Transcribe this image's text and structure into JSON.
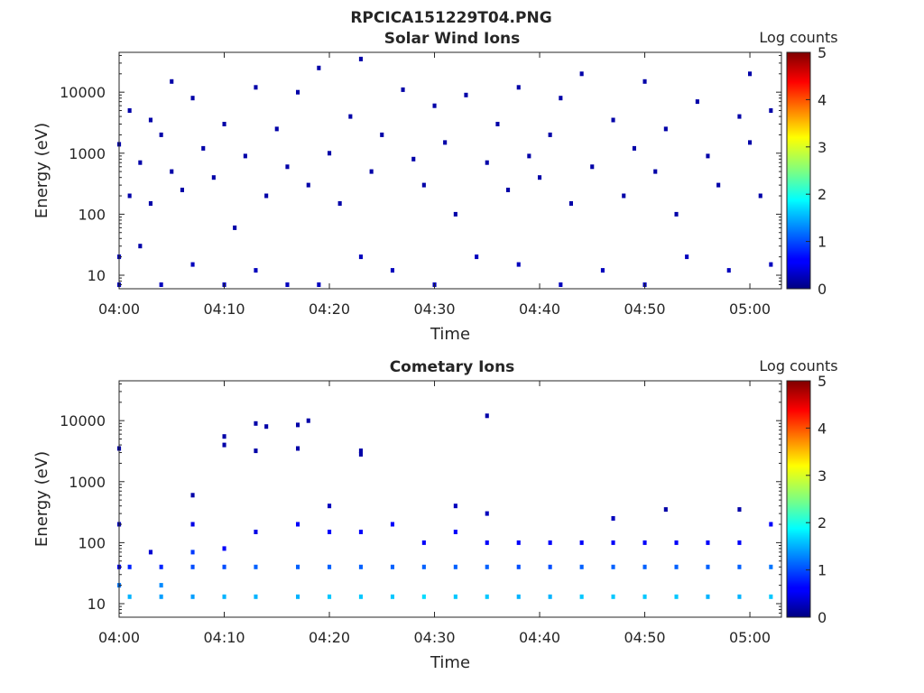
{
  "figure": {
    "title": "RPCICA151229T04.PNG"
  },
  "chart_data": [
    {
      "type": "heatmap",
      "title": "Solar Wind Ions",
      "xlabel": "Time",
      "ylabel": "Energy (eV)",
      "x_ticks": [
        "04:00",
        "04:10",
        "04:20",
        "04:30",
        "04:40",
        "04:50",
        "05:00"
      ],
      "y_ticks": [
        "10",
        "100",
        "1000",
        "10000"
      ],
      "xlim": [
        "04:00",
        "05:03"
      ],
      "ylim": [
        6,
        45000
      ],
      "y_scale": "log",
      "colorbar": {
        "label": "Log counts",
        "ticks": [
          "0",
          "1",
          "2",
          "3",
          "4",
          "5"
        ],
        "range": [
          0,
          5
        ],
        "colormap": "jet"
      },
      "data_summary": "Sparse scatter of ~1 count cells spread across the full 6 eV to 30 keV range for the whole hour; short vertical streaks below ~30 eV; almost all log counts are 0-0.5 (dark blue).",
      "cells": [
        [
          "04:00",
          20,
          0.3
        ],
        [
          "04:00",
          7,
          0.3
        ],
        [
          "04:00",
          1400,
          0.2
        ],
        [
          "04:01",
          200,
          0.2
        ],
        [
          "04:01",
          5000,
          0.2
        ],
        [
          "04:02",
          30,
          0.2
        ],
        [
          "04:02",
          700,
          0.2
        ],
        [
          "04:03",
          3500,
          0.2
        ],
        [
          "04:03",
          150,
          0.2
        ],
        [
          "04:04",
          7,
          0.3
        ],
        [
          "04:04",
          2000,
          0.2
        ],
        [
          "04:05",
          500,
          0.2
        ],
        [
          "04:05",
          15000,
          0.2
        ],
        [
          "04:06",
          250,
          0.2
        ],
        [
          "04:07",
          15,
          0.3
        ],
        [
          "04:07",
          8000,
          0.2
        ],
        [
          "04:08",
          1200,
          0.2
        ],
        [
          "04:09",
          400,
          0.2
        ],
        [
          "04:10",
          7,
          0.3
        ],
        [
          "04:10",
          3000,
          0.2
        ],
        [
          "04:11",
          60,
          0.2
        ],
        [
          "04:12",
          900,
          0.2
        ],
        [
          "04:13",
          12,
          0.3
        ],
        [
          "04:13",
          12000,
          0.2
        ],
        [
          "04:14",
          200,
          0.2
        ],
        [
          "04:15",
          2500,
          0.2
        ],
        [
          "04:16",
          7,
          0.3
        ],
        [
          "04:16",
          600,
          0.2
        ],
        [
          "04:17",
          10000,
          0.2
        ],
        [
          "04:18",
          300,
          0.2
        ],
        [
          "04:19",
          25000,
          0.2
        ],
        [
          "04:19",
          7,
          0.3
        ],
        [
          "04:20",
          1000,
          0.2
        ],
        [
          "04:21",
          150,
          0.2
        ],
        [
          "04:22",
          4000,
          0.2
        ],
        [
          "04:23",
          35000,
          0.2
        ],
        [
          "04:23",
          20,
          0.3
        ],
        [
          "04:24",
          500,
          0.2
        ],
        [
          "04:25",
          2000,
          0.2
        ],
        [
          "04:26",
          12,
          0.3
        ],
        [
          "04:27",
          11000,
          0.2
        ],
        [
          "04:28",
          800,
          0.2
        ],
        [
          "04:29",
          300,
          0.2
        ],
        [
          "04:30",
          7,
          0.3
        ],
        [
          "04:30",
          6000,
          0.2
        ],
        [
          "04:31",
          1500,
          0.2
        ],
        [
          "04:32",
          100,
          0.2
        ],
        [
          "04:33",
          9000,
          0.2
        ],
        [
          "04:34",
          20,
          0.3
        ],
        [
          "04:35",
          700,
          0.2
        ],
        [
          "04:36",
          3000,
          0.2
        ],
        [
          "04:37",
          250,
          0.2
        ],
        [
          "04:38",
          15,
          0.3
        ],
        [
          "04:38",
          12000,
          0.2
        ],
        [
          "04:39",
          900,
          0.2
        ],
        [
          "04:40",
          400,
          0.2
        ],
        [
          "04:41",
          2000,
          0.2
        ],
        [
          "04:42",
          7,
          0.3
        ],
        [
          "04:42",
          8000,
          0.2
        ],
        [
          "04:43",
          150,
          0.2
        ],
        [
          "04:44",
          20000,
          0.2
        ],
        [
          "04:45",
          600,
          0.2
        ],
        [
          "04:46",
          12,
          0.3
        ],
        [
          "04:47",
          3500,
          0.2
        ],
        [
          "04:48",
          200,
          0.2
        ],
        [
          "04:49",
          1200,
          0.2
        ],
        [
          "04:50",
          7,
          0.3
        ],
        [
          "04:50",
          15000,
          0.2
        ],
        [
          "04:51",
          500,
          0.2
        ],
        [
          "04:52",
          2500,
          0.2
        ],
        [
          "04:53",
          100,
          0.2
        ],
        [
          "04:54",
          20,
          0.3
        ],
        [
          "04:55",
          7000,
          0.2
        ],
        [
          "04:56",
          900,
          0.2
        ],
        [
          "04:57",
          300,
          0.2
        ],
        [
          "04:58",
          12,
          0.3
        ],
        [
          "04:59",
          4000,
          0.2
        ],
        [
          "05:00",
          1500,
          0.2
        ],
        [
          "05:00",
          20000,
          0.2
        ],
        [
          "05:01",
          200,
          0.2
        ],
        [
          "05:02",
          5000,
          0.2
        ],
        [
          "05:02",
          15,
          0.3
        ]
      ]
    },
    {
      "type": "heatmap",
      "title": "Cometary Ions",
      "xlabel": "Time",
      "ylabel": "Energy (eV)",
      "x_ticks": [
        "04:00",
        "04:10",
        "04:20",
        "04:30",
        "04:40",
        "04:50",
        "05:00"
      ],
      "y_ticks": [
        "10",
        "100",
        "1000",
        "10000"
      ],
      "xlim": [
        "04:00",
        "05:03"
      ],
      "ylim": [
        6,
        45000
      ],
      "y_scale": "log",
      "colorbar": {
        "label": "Log counts",
        "ticks": [
          "0",
          "1",
          "2",
          "3",
          "4",
          "5"
        ],
        "range": [
          0,
          5
        ],
        "colormap": "jet"
      },
      "data_summary": "Periodic bursts roughly every 3 minutes spanning ~8-250 eV, peaking near 10-40 eV at log counts ~1.5-2 (light blue); isolated single counts up to ~12 keV.",
      "cells": [
        [
          "04:00",
          3500,
          0.2
        ],
        [
          "04:00",
          200,
          0.3
        ],
        [
          "04:00",
          40,
          0.6
        ],
        [
          "04:00",
          20,
          1.2
        ],
        [
          "04:01",
          13,
          1.5
        ],
        [
          "04:01",
          40,
          0.8
        ],
        [
          "04:03",
          70,
          0.4
        ],
        [
          "04:04",
          40,
          0.8
        ],
        [
          "04:04",
          20,
          1.3
        ],
        [
          "04:04",
          13,
          1.4
        ],
        [
          "04:07",
          600,
          0.2
        ],
        [
          "04:07",
          200,
          0.5
        ],
        [
          "04:07",
          70,
          0.9
        ],
        [
          "04:07",
          40,
          1.0
        ],
        [
          "04:07",
          13,
          1.4
        ],
        [
          "04:10",
          4000,
          0.2
        ],
        [
          "04:10",
          5500,
          0.2
        ],
        [
          "04:10",
          80,
          0.6
        ],
        [
          "04:10",
          40,
          1.0
        ],
        [
          "04:10",
          13,
          1.5
        ],
        [
          "04:13",
          9000,
          0.2
        ],
        [
          "04:13",
          3200,
          0.2
        ],
        [
          "04:13",
          150,
          0.5
        ],
        [
          "04:13",
          40,
          1.1
        ],
        [
          "04:13",
          13,
          1.5
        ],
        [
          "04:14",
          8000,
          0.2
        ],
        [
          "04:17",
          3500,
          0.2
        ],
        [
          "04:17",
          8500,
          0.2
        ],
        [
          "04:17",
          200,
          0.6
        ],
        [
          "04:17",
          40,
          1.1
        ],
        [
          "04:17",
          13,
          1.5
        ],
        [
          "04:18",
          10000,
          0.2
        ],
        [
          "04:20",
          400,
          0.3
        ],
        [
          "04:20",
          150,
          0.6
        ],
        [
          "04:20",
          40,
          1.1
        ],
        [
          "04:20",
          13,
          1.6
        ],
        [
          "04:23",
          2800,
          0.2
        ],
        [
          "04:23",
          3200,
          0.2
        ],
        [
          "04:23",
          150,
          0.6
        ],
        [
          "04:23",
          40,
          1.1
        ],
        [
          "04:23",
          13,
          1.6
        ],
        [
          "04:26",
          200,
          0.6
        ],
        [
          "04:26",
          40,
          1.1
        ],
        [
          "04:26",
          13,
          1.6
        ],
        [
          "04:29",
          100,
          0.6
        ],
        [
          "04:29",
          40,
          1.1
        ],
        [
          "04:29",
          13,
          1.7
        ],
        [
          "04:32",
          400,
          0.3
        ],
        [
          "04:32",
          150,
          0.6
        ],
        [
          "04:32",
          40,
          1.1
        ],
        [
          "04:32",
          13,
          1.6
        ],
        [
          "04:35",
          12000,
          0.2
        ],
        [
          "04:35",
          300,
          0.3
        ],
        [
          "04:35",
          100,
          0.6
        ],
        [
          "04:35",
          40,
          1.1
        ],
        [
          "04:35",
          13,
          1.6
        ],
        [
          "04:38",
          100,
          0.6
        ],
        [
          "04:38",
          40,
          1.0
        ],
        [
          "04:38",
          13,
          1.5
        ],
        [
          "04:41",
          100,
          0.6
        ],
        [
          "04:41",
          40,
          1.0
        ],
        [
          "04:41",
          13,
          1.5
        ],
        [
          "04:44",
          100,
          0.6
        ],
        [
          "04:44",
          40,
          1.1
        ],
        [
          "04:44",
          13,
          1.6
        ],
        [
          "04:47",
          250,
          0.3
        ],
        [
          "04:47",
          100,
          0.6
        ],
        [
          "04:47",
          40,
          1.1
        ],
        [
          "04:47",
          13,
          1.6
        ],
        [
          "04:50",
          100,
          0.6
        ],
        [
          "04:50",
          40,
          1.1
        ],
        [
          "04:50",
          13,
          1.6
        ],
        [
          "04:52",
          350,
          0.2
        ],
        [
          "04:53",
          100,
          0.6
        ],
        [
          "04:53",
          40,
          1.1
        ],
        [
          "04:53",
          13,
          1.6
        ],
        [
          "04:56",
          100,
          0.6
        ],
        [
          "04:56",
          40,
          1.1
        ],
        [
          "04:56",
          13,
          1.5
        ],
        [
          "04:59",
          350,
          0.2
        ],
        [
          "04:59",
          100,
          0.6
        ],
        [
          "04:59",
          40,
          1.1
        ],
        [
          "04:59",
          13,
          1.5
        ],
        [
          "05:02",
          200,
          0.6
        ],
        [
          "05:02",
          40,
          1.2
        ],
        [
          "05:02",
          13,
          1.6
        ]
      ]
    }
  ]
}
